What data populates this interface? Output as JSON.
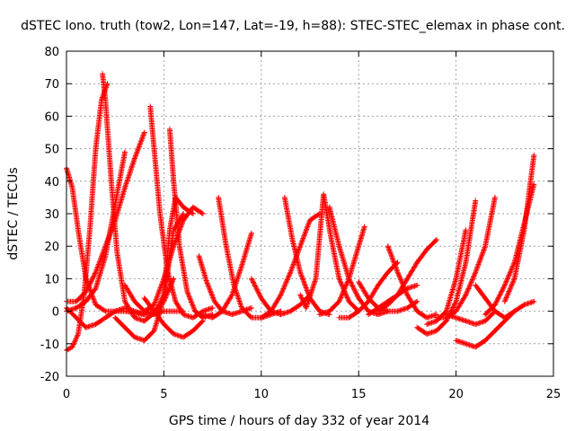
{
  "chart_data": {
    "type": "scatter",
    "title": "dSTEC Iono. truth (tow2, Lon=147, Lat=-19, h=88): STEC-STEC_elemax in phase cont.",
    "xlabel": "GPS time / hours of day 332 of year 2014",
    "ylabel": "dSTEC  / TECUs",
    "xlim": [
      0,
      25
    ],
    "ylim": [
      -20,
      80
    ],
    "xticks": [
      0,
      5,
      10,
      15,
      20,
      25
    ],
    "yticks": [
      -20,
      -10,
      0,
      10,
      20,
      30,
      40,
      50,
      60,
      70,
      80
    ],
    "grid": true,
    "marker": "plus",
    "series_color": "#ff0000",
    "series": [
      {
        "x": [
          0.0,
          0.3,
          0.6,
          0.9,
          1.2,
          1.5,
          1.8,
          2.1
        ],
        "y": [
          -12,
          -11,
          -7,
          5,
          25,
          50,
          65,
          70
        ]
      },
      {
        "x": [
          1.85,
          2.0,
          2.3,
          2.6,
          3.0,
          3.5,
          4.0,
          4.4,
          5.0,
          5.5,
          6.0
        ],
        "y": [
          73,
          65,
          40,
          18,
          3,
          -2,
          -3,
          -1,
          0,
          0,
          0
        ]
      },
      {
        "x": [
          0.0,
          0.3,
          0.6,
          1.0,
          1.5,
          2.0,
          3.0,
          4.0
        ],
        "y": [
          44,
          38,
          25,
          10,
          2,
          0,
          0,
          -1
        ]
      },
      {
        "x": [
          0.0,
          0.5,
          1.0,
          1.5,
          2.0,
          2.5,
          3.0,
          3.5,
          4.0
        ],
        "y": [
          3,
          3,
          6,
          12,
          20,
          28,
          38,
          47,
          55
        ]
      },
      {
        "x": [
          0.0,
          0.5,
          1.0,
          1.5,
          2.0,
          2.5,
          3.0
        ],
        "y": [
          0,
          1,
          3,
          7,
          17,
          33,
          49
        ]
      },
      {
        "x": [
          0.0,
          0.5,
          1.0,
          1.5,
          2.0,
          2.5,
          3.0,
          3.5,
          4.0,
          4.5,
          5.0,
          5.5
        ],
        "y": [
          1,
          -2,
          -5,
          -4,
          -2,
          0,
          1,
          0,
          -1,
          0,
          3,
          10
        ]
      },
      {
        "x": [
          2.5,
          3.0,
          3.5,
          4.0,
          4.5,
          5.0,
          5.5,
          6.0
        ],
        "y": [
          -2,
          -5,
          -8,
          -9,
          -6,
          4,
          25,
          30
        ]
      },
      {
        "x": [
          4.3,
          4.5,
          4.8,
          5.2,
          5.6,
          6.0,
          6.5,
          7.0,
          7.5
        ],
        "y": [
          63,
          50,
          30,
          12,
          3,
          -1,
          -2,
          0,
          1
        ]
      },
      {
        "x": [
          5.3,
          5.5,
          5.8,
          6.2,
          6.6,
          7.0,
          7.5
        ],
        "y": [
          56,
          40,
          20,
          6,
          0,
          -2,
          -1
        ]
      },
      {
        "x": [
          3.0,
          3.5,
          4.0,
          4.5,
          5.0,
          5.5,
          6.0,
          6.5,
          7.0
        ],
        "y": [
          8,
          3,
          0,
          2,
          10,
          20,
          28,
          32,
          30
        ]
      },
      {
        "x": [
          4.0,
          4.5,
          5.0,
          5.3,
          5.6,
          6.0,
          6.5
        ],
        "y": [
          0,
          -1,
          5,
          25,
          35,
          32,
          30
        ]
      },
      {
        "x": [
          4.0,
          4.5,
          5.0,
          5.5,
          6.0,
          6.5,
          7.0
        ],
        "y": [
          4,
          0,
          -4,
          -7,
          -8,
          -6,
          -3
        ]
      },
      {
        "x": [
          6.8,
          7.2,
          7.6,
          8.0,
          8.5,
          9.0,
          9.5
        ],
        "y": [
          17,
          9,
          3,
          0,
          -1,
          0,
          1
        ]
      },
      {
        "x": [
          7.8,
          8.2,
          8.6,
          9.0,
          9.5,
          10.0,
          10.5,
          11.0
        ],
        "y": [
          35,
          20,
          8,
          1,
          -2,
          -2,
          -1,
          0
        ]
      },
      {
        "x": [
          7.0,
          7.5,
          8.0,
          8.5,
          9.0,
          9.5
        ],
        "y": [
          -1,
          -2,
          0,
          5,
          14,
          24
        ]
      },
      {
        "x": [
          9.5,
          10.0,
          10.5,
          11.0,
          11.5,
          12.0,
          12.5
        ],
        "y": [
          10,
          4,
          0,
          -1,
          0,
          2,
          5
        ]
      },
      {
        "x": [
          11.2,
          11.6,
          12.0,
          12.5,
          13.0,
          13.5
        ],
        "y": [
          35,
          22,
          12,
          4,
          0,
          -1
        ]
      },
      {
        "x": [
          10.0,
          10.5,
          11.0,
          11.5,
          12.0,
          12.5,
          13.0
        ],
        "y": [
          -2,
          0,
          5,
          12,
          20,
          28,
          30
        ]
      },
      {
        "x": [
          12.0,
          12.3,
          12.8,
          13.2,
          13.6,
          14.0,
          14.5,
          15.0
        ],
        "y": [
          5,
          1,
          10,
          36,
          22,
          10,
          3,
          0
        ]
      },
      {
        "x": [
          13.5,
          14.0,
          14.5,
          15.0,
          15.5,
          16.0,
          16.5
        ],
        "y": [
          32,
          20,
          10,
          4,
          0,
          -1,
          0
        ]
      },
      {
        "x": [
          13.0,
          13.5,
          14.0,
          14.5,
          15.0,
          15.3
        ],
        "y": [
          -1,
          0,
          3,
          10,
          20,
          26
        ]
      },
      {
        "x": [
          14.0,
          14.5,
          15.0,
          15.5,
          16.0,
          16.5,
          17.0
        ],
        "y": [
          -2,
          -2,
          0,
          3,
          8,
          12,
          15
        ]
      },
      {
        "x": [
          15.0,
          15.5,
          16.0,
          16.5,
          17.0,
          17.5,
          18.0
        ],
        "y": [
          9,
          4,
          1,
          0,
          0,
          1,
          3
        ]
      },
      {
        "x": [
          16.5,
          17.0,
          17.5,
          18.0,
          18.5,
          19.0
        ],
        "y": [
          20,
          12,
          5,
          0,
          -2,
          -1
        ]
      },
      {
        "x": [
          16.0,
          16.5,
          17.0,
          17.5,
          18.0,
          18.5,
          19.0
        ],
        "y": [
          0,
          2,
          5,
          10,
          15,
          19,
          22
        ]
      },
      {
        "x": [
          15.5,
          16.0,
          16.5,
          17.0,
          17.5,
          18.0
        ],
        "y": [
          -1,
          1,
          3,
          5,
          7,
          8
        ]
      },
      {
        "x": [
          18.0,
          18.5,
          19.0,
          19.5,
          20.0,
          20.5,
          21.0
        ],
        "y": [
          -5,
          -7,
          -6,
          -3,
          3,
          15,
          34
        ]
      },
      {
        "x": [
          19.0,
          19.5,
          20.0,
          20.5,
          21.0,
          21.5,
          22.0
        ],
        "y": [
          -2,
          -2,
          0,
          5,
          12,
          20,
          35
        ]
      },
      {
        "x": [
          18.5,
          19.0,
          19.5,
          20.0,
          20.5
        ],
        "y": [
          -4,
          -3,
          0,
          10,
          25
        ]
      },
      {
        "x": [
          19.5,
          20.0,
          20.5,
          21.0,
          21.5,
          22.0
        ],
        "y": [
          -1,
          -2,
          -3,
          -4,
          -3,
          0
        ]
      },
      {
        "x": [
          20.0,
          20.5,
          21.0,
          21.5,
          22.0,
          22.5,
          23.0
        ],
        "y": [
          -9,
          -10,
          -11,
          -9,
          -6,
          -3,
          0
        ]
      },
      {
        "x": [
          21.0,
          21.5,
          22.0,
          22.5,
          23.0,
          23.5,
          24.0
        ],
        "y": [
          8,
          4,
          0,
          -2,
          0,
          2,
          3
        ]
      },
      {
        "x": [
          21.5,
          22.0,
          22.5,
          23.0,
          23.5,
          24.0
        ],
        "y": [
          -1,
          2,
          8,
          15,
          27,
          39
        ]
      },
      {
        "x": [
          22.5,
          23.0,
          23.5,
          24.0
        ],
        "y": [
          3,
          10,
          25,
          48
        ]
      }
    ]
  }
}
